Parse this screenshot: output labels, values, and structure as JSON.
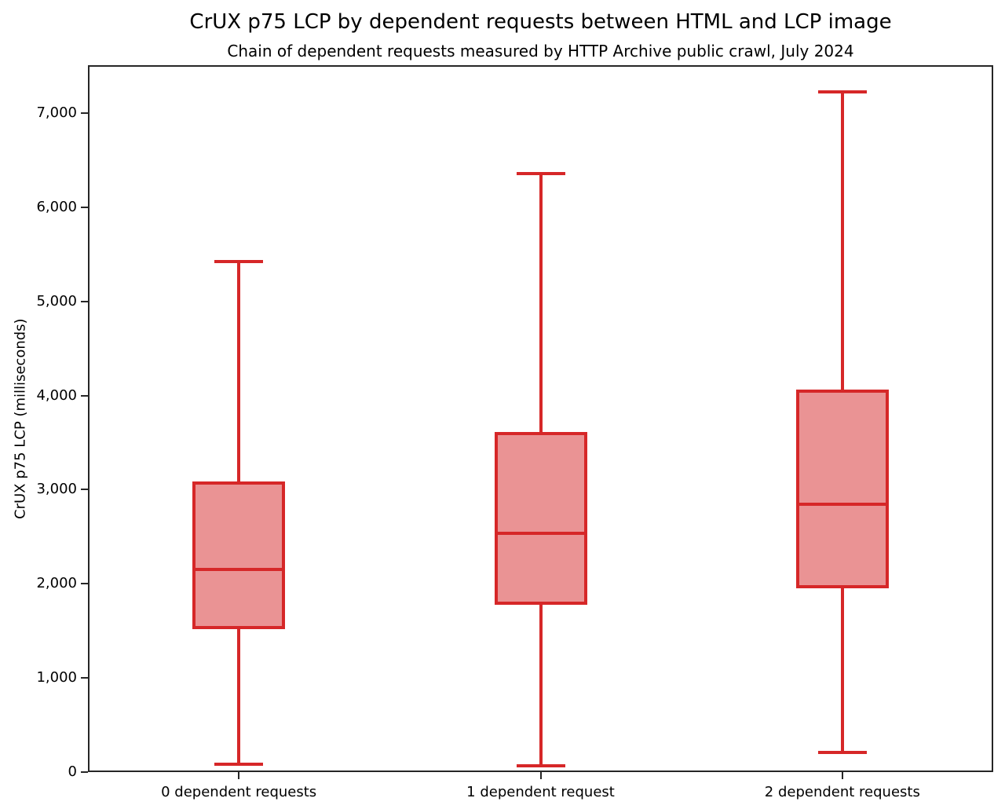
{
  "chart_data": {
    "type": "boxplot",
    "title": "CrUX p75 LCP by dependent requests between HTML and LCP image",
    "subtitle": "Chain of dependent requests measured by HTTP Archive public crawl, July 2024",
    "ylabel": "CrUX p75 LCP (milliseconds)",
    "xlabel": "",
    "categories": [
      "0 dependent requests",
      "1 dependent request",
      "2 dependent requests"
    ],
    "series": [
      {
        "name": "0 dependent requests",
        "whisker_low": 80,
        "q1": 1515,
        "median": 2150,
        "q3": 3090,
        "whisker_high": 5425
      },
      {
        "name": "1 dependent request",
        "whisker_low": 65,
        "q1": 1780,
        "median": 2540,
        "q3": 3610,
        "whisker_high": 6355
      },
      {
        "name": "2 dependent requests",
        "whisker_low": 205,
        "q1": 1950,
        "median": 2845,
        "q3": 4065,
        "whisker_high": 7225
      }
    ],
    "yticks": [
      0,
      1000,
      2000,
      3000,
      4000,
      5000,
      6000,
      7000
    ],
    "ylim": [
      0,
      7510
    ],
    "grid": false,
    "legend": null,
    "colors": {
      "box_fill": "#ea9394",
      "box_edge": "#d62728",
      "spine": "#262626",
      "text": "#000000"
    }
  }
}
